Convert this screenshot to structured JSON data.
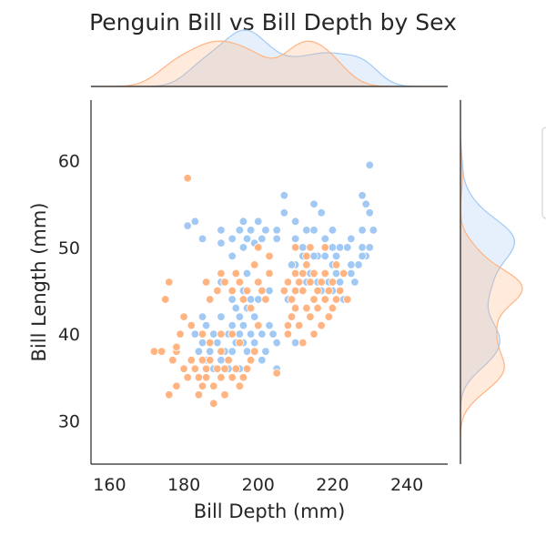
{
  "chart_data": {
    "type": "scatter",
    "title": "Penguin Bill vs Bill Depth by Sex",
    "xlabel": "Bill Depth (mm)",
    "ylabel": "Bill Length (mm)",
    "xlim": [
      155,
      251
    ],
    "ylim": [
      25,
      67
    ],
    "xticks": [
      "160",
      "180",
      "200",
      "220",
      "240"
    ],
    "yticks": [
      "30",
      "40",
      "50",
      "60"
    ],
    "grid": false,
    "legend": "clipped at right edge, entries not visible",
    "marginals": "kde",
    "series": [
      {
        "color": "#a1c9f4",
        "points": [
          [
            181,
            52.5
          ],
          [
            183,
            53
          ],
          [
            185,
            51
          ],
          [
            190,
            52
          ],
          [
            190,
            50.5
          ],
          [
            193,
            49
          ],
          [
            193,
            51
          ],
          [
            195,
            52
          ],
          [
            196,
            50
          ],
          [
            196,
            53
          ],
          [
            197,
            51
          ],
          [
            198,
            52
          ],
          [
            199,
            50.5
          ],
          [
            200,
            50
          ],
          [
            200,
            53
          ],
          [
            201,
            51
          ],
          [
            202,
            52
          ],
          [
            205,
            52
          ],
          [
            205,
            51
          ],
          [
            207,
            56
          ],
          [
            207,
            54
          ],
          [
            210,
            53
          ],
          [
            210,
            51
          ],
          [
            213,
            52
          ],
          [
            215,
            55
          ],
          [
            215,
            52
          ],
          [
            217,
            54
          ],
          [
            218,
            51
          ],
          [
            220,
            52
          ],
          [
            220,
            50
          ],
          [
            221,
            49
          ],
          [
            222,
            50
          ],
          [
            225,
            47
          ],
          [
            225,
            51
          ],
          [
            227,
            48
          ],
          [
            228,
            56
          ],
          [
            228,
            52
          ],
          [
            228,
            50
          ],
          [
            229,
            55
          ],
          [
            230,
            54
          ],
          [
            230,
            50
          ],
          [
            230,
            59.5
          ],
          [
            212,
            49
          ],
          [
            210,
            48
          ],
          [
            216,
            49
          ],
          [
            219,
            46
          ],
          [
            220,
            45
          ],
          [
            221,
            47
          ],
          [
            223,
            44
          ],
          [
            225,
            48
          ],
          [
            226,
            46
          ],
          [
            217,
            45
          ],
          [
            214,
            47
          ],
          [
            209,
            48
          ],
          [
            212,
            50
          ],
          [
            213,
            46
          ],
          [
            208,
            44
          ],
          [
            220,
            48
          ],
          [
            222,
            46
          ],
          [
            224,
            50
          ],
          [
            218,
            49
          ],
          [
            215,
            49
          ],
          [
            229,
            49
          ],
          [
            231,
            52
          ],
          [
            228,
            49
          ],
          [
            216,
            46
          ],
          [
            183,
            40
          ],
          [
            184,
            38
          ],
          [
            185,
            39
          ],
          [
            186,
            41
          ],
          [
            186,
            37
          ],
          [
            187,
            38
          ],
          [
            188,
            40
          ],
          [
            188,
            36
          ],
          [
            189,
            39
          ],
          [
            190,
            42
          ],
          [
            190,
            37
          ],
          [
            191,
            38
          ],
          [
            192,
            40
          ],
          [
            193,
            41
          ],
          [
            193,
            38
          ],
          [
            194,
            39
          ],
          [
            195,
            40
          ],
          [
            195,
            42
          ],
          [
            196,
            41
          ],
          [
            196,
            39
          ],
          [
            197,
            38
          ],
          [
            197,
            43
          ],
          [
            198,
            40
          ],
          [
            198,
            44
          ],
          [
            199,
            42
          ],
          [
            199,
            39
          ],
          [
            200,
            41
          ],
          [
            201,
            40
          ],
          [
            201,
            37
          ],
          [
            202,
            38
          ],
          [
            203,
            41
          ],
          [
            204,
            40
          ],
          [
            205,
            39
          ],
          [
            205,
            36
          ],
          [
            210,
            39
          ],
          [
            192,
            36
          ],
          [
            194,
            43
          ],
          [
            196,
            45
          ],
          [
            198,
            37
          ],
          [
            195,
            36
          ],
          [
            197,
            47
          ],
          [
            190,
            46
          ],
          [
            185,
            42
          ],
          [
            182,
            37
          ],
          [
            200,
            44
          ],
          [
            203,
            45
          ],
          [
            193,
            44
          ]
        ]
      },
      {
        "color": "#ffb482",
        "points": [
          [
            172,
            38
          ],
          [
            174,
            38
          ],
          [
            176,
            33
          ],
          [
            177,
            37
          ],
          [
            178,
            34
          ],
          [
            178,
            38
          ],
          [
            180,
            36
          ],
          [
            181,
            35
          ],
          [
            181,
            58
          ],
          [
            182,
            37
          ],
          [
            183,
            36
          ],
          [
            184,
            35
          ],
          [
            184,
            33
          ],
          [
            185,
            34
          ],
          [
            185,
            37
          ],
          [
            186,
            35
          ],
          [
            186,
            36
          ],
          [
            187,
            37
          ],
          [
            188,
            34
          ],
          [
            188,
            32
          ],
          [
            189,
            36
          ],
          [
            190,
            35
          ],
          [
            190,
            38
          ],
          [
            191,
            33
          ],
          [
            191,
            36
          ],
          [
            192,
            37
          ],
          [
            193,
            35
          ],
          [
            194,
            36
          ],
          [
            195,
            34
          ],
          [
            196,
            35
          ],
          [
            197,
            36
          ],
          [
            198,
            37
          ],
          [
            199,
            38
          ],
          [
            205,
            35.5
          ],
          [
            179,
            40
          ],
          [
            180,
            42
          ],
          [
            182,
            41
          ],
          [
            175,
            44
          ],
          [
            176,
            46
          ],
          [
            178,
            38.5
          ],
          [
            186,
            46
          ],
          [
            187,
            44
          ],
          [
            189,
            45
          ],
          [
            190,
            47
          ],
          [
            191,
            46
          ],
          [
            193,
            45
          ],
          [
            194,
            47
          ],
          [
            195,
            46
          ],
          [
            196,
            44
          ],
          [
            197,
            45
          ],
          [
            198,
            43
          ],
          [
            199,
            48
          ],
          [
            200,
            46
          ],
          [
            200,
            41
          ],
          [
            201,
            45
          ],
          [
            202,
            44
          ],
          [
            185,
            40
          ],
          [
            190,
            40
          ],
          [
            193,
            40
          ],
          [
            195,
            39
          ],
          [
            187,
            39
          ],
          [
            200,
            50
          ],
          [
            203,
            49
          ],
          [
            203,
            47
          ],
          [
            207,
            45
          ],
          [
            208,
            46
          ],
          [
            209,
            44
          ],
          [
            210,
            47
          ],
          [
            210,
            45
          ],
          [
            211,
            46
          ],
          [
            212,
            47
          ],
          [
            212,
            45
          ],
          [
            213,
            43
          ],
          [
            213,
            48
          ],
          [
            214,
            46
          ],
          [
            215,
            44
          ],
          [
            215,
            47
          ],
          [
            216,
            45
          ],
          [
            216,
            43
          ],
          [
            217,
            46
          ],
          [
            218,
            47
          ],
          [
            218,
            44
          ],
          [
            219,
            45
          ],
          [
            220,
            46
          ],
          [
            220,
            43
          ],
          [
            221,
            44
          ],
          [
            222,
            45
          ],
          [
            223,
            47
          ],
          [
            224,
            44
          ],
          [
            210,
            50
          ],
          [
            208,
            41
          ],
          [
            209,
            42
          ],
          [
            211,
            41
          ],
          [
            212,
            39
          ],
          [
            214,
            42
          ],
          [
            215,
            40
          ],
          [
            217,
            41
          ],
          [
            219,
            42
          ],
          [
            214,
            50
          ],
          [
            213,
            49
          ],
          [
            218,
            50
          ],
          [
            221,
            48
          ],
          [
            208,
            40
          ],
          [
            210,
            43
          ]
        ]
      }
    ]
  }
}
